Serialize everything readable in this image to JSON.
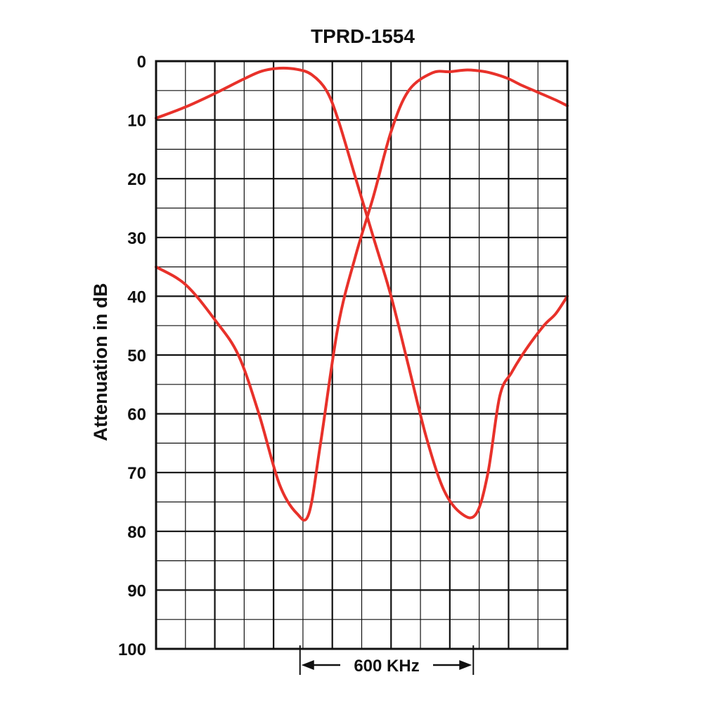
{
  "chart_data": {
    "type": "line",
    "title": "TPRD-1554",
    "ylabel": "Attenuation in dB",
    "xlabel": "",
    "ylim": [
      0,
      100
    ],
    "y_inverted": true,
    "yticks": [
      0,
      10,
      20,
      30,
      40,
      50,
      60,
      70,
      80,
      90,
      100
    ],
    "ytick_labels": [
      "0",
      "10",
      "20",
      "30",
      "40",
      "50",
      "60",
      "70",
      "80",
      "90",
      "100"
    ],
    "xlim": [
      0,
      14
    ],
    "grid": true,
    "colors": {
      "curve": "#e8312a",
      "grid": "#111111"
    },
    "series": [
      {
        "x": [
          0,
          1,
          2,
          2.8,
          3.5,
          4.2,
          4.8,
          5.2,
          5.6,
          6.2,
          6.8,
          7.4,
          8,
          8.6,
          9.4,
          10,
          10.6,
          11.2,
          11.6,
          12,
          12.4,
          13,
          13.6,
          14
        ],
        "y": [
          35,
          38,
          44,
          50,
          60,
          72,
          77,
          77,
          65,
          45,
          33,
          23,
          12,
          5,
          2,
          1.8,
          1.5,
          1.8,
          2.3,
          3,
          4,
          5.3,
          6.6,
          7.6
        ]
      },
      {
        "x": [
          0,
          1,
          2,
          3,
          3.6,
          4.2,
          4.8,
          5.3,
          5.8,
          6.2,
          6.8,
          7.4,
          8,
          8.6,
          9.2,
          9.8,
          10.4,
          10.9,
          11.3,
          11.7,
          12.1,
          12.6,
          13.2,
          13.6,
          14
        ],
        "y": [
          9.7,
          7.8,
          5.5,
          3,
          1.7,
          1.2,
          1.4,
          2.3,
          5,
          10,
          20,
          30,
          40,
          52,
          64,
          73,
          77,
          77,
          70,
          57,
          53,
          49,
          45,
          43,
          40
        ]
      }
    ],
    "annotation": {
      "label": "600 KHz",
      "x_start": 4.9,
      "x_end": 10.8
    }
  }
}
